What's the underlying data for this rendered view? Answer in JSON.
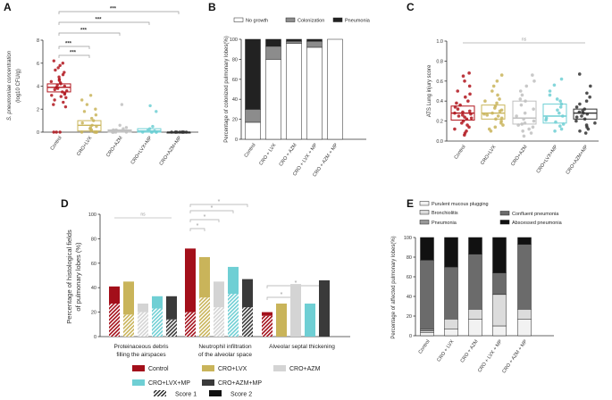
{
  "panels": {
    "A": {
      "letter": "A",
      "ylabel_line1": "S. pneumoniae concentration",
      "ylabel_line2": "(log10 CFU/g)",
      "yticks": [
        "0",
        "2",
        "4",
        "6",
        "8"
      ],
      "sig": [
        "***",
        "***",
        "***",
        "***",
        "***"
      ]
    },
    "B": {
      "letter": "B",
      "ylabel": "Percentage of colonized pulmonary lobes(%)",
      "yticks": [
        "0",
        "20",
        "40",
        "60",
        "80",
        "100"
      ],
      "legend": [
        "No growth",
        "Colonization",
        "Pneumonia"
      ]
    },
    "C": {
      "letter": "C",
      "ylabel": "ATS Lung injury score",
      "yticks": [
        "0.0",
        "0.2",
        "0.4",
        "0.6",
        "0.8",
        "1.0"
      ],
      "sig": "ns"
    },
    "D": {
      "letter": "D",
      "ylabel_line1": "Percentage of histological fields",
      "ylabel_line2": "of pulmonary lobes (%)",
      "yticks": [
        "0",
        "20",
        "40",
        "60",
        "80",
        "100"
      ],
      "cat1_line1": "Proteinaceous debris",
      "cat1_line2": "filling the airspaces",
      "cat2_line1": "Neutrophil infiltration",
      "cat2_line2": "of the alveolar space",
      "cat3": "Alveolar septal thickening",
      "ns": "ns",
      "star": "*",
      "legend_groups": [
        "Control",
        "CRO+LVX",
        "CRO+AZM",
        "CRO+LVX+MP",
        "CRO+AZM+MP"
      ],
      "legend_score1": "Score 1",
      "legend_score2": "Score 2"
    },
    "E": {
      "letter": "E",
      "ylabel": "Percentage of affected pulmonary lobes(%)",
      "yticks": [
        "0",
        "20",
        "40",
        "60",
        "80",
        "100"
      ],
      "legend": [
        "Purulent mucous plugging",
        "Bronchiolitis",
        "Pneumonia",
        "Confluent pneumonia",
        "Abscessed pneumonia"
      ]
    }
  },
  "chart_data": [
    {
      "panel": "A",
      "type": "scatter",
      "title": "",
      "ylabel": "S. pneumoniae concentration (log10 CFU/g)",
      "ylim": [
        0,
        8
      ],
      "categories": [
        "Control",
        "CRO+LVX",
        "CRO+AZM",
        "CRO+LVX+MP",
        "CRO+AZM+MP"
      ],
      "colors": [
        "#b0141c",
        "#c9b45a",
        "#bfbfbf",
        "#6fcfd4",
        "#333333"
      ],
      "box": [
        {
          "q1": 3.5,
          "median": 3.9,
          "q3": 4.2
        },
        {
          "q1": 0.1,
          "median": 0.6,
          "q3": 1.0
        },
        {
          "q1": 0.0,
          "median": 0.1,
          "q3": 0.2
        },
        {
          "q1": 0.0,
          "median": 0.1,
          "q3": 0.3
        },
        {
          "q1": 0.0,
          "median": 0.0,
          "q3": 0.0
        }
      ],
      "points": [
        [
          6.2,
          6.0,
          5.8,
          5.6,
          5.4,
          5.2,
          5.0,
          4.8,
          4.6,
          4.5,
          4.4,
          4.3,
          4.2,
          4.1,
          4.0,
          3.9,
          3.8,
          3.7,
          3.6,
          3.5,
          3.4,
          3.3,
          3.2,
          3.1,
          3.0,
          2.8,
          2.6,
          2.4,
          2.2,
          0.0,
          0.0,
          0.0
        ],
        [
          3.2,
          2.8,
          2.4,
          2.0,
          1.8,
          1.5,
          1.2,
          1.0,
          0.8,
          0.6,
          0.5,
          0.4,
          0.3,
          0.2,
          0.1,
          0.0,
          0.0,
          0.0,
          0.0,
          0.0
        ],
        [
          2.4,
          0.6,
          0.4,
          0.3,
          0.2,
          0.2,
          0.1,
          0.1,
          0.0,
          0.0,
          0.0,
          0.0,
          0.0,
          0.0
        ],
        [
          2.3,
          1.8,
          0.5,
          0.3,
          0.2,
          0.1,
          0.0,
          0.0,
          0.0,
          0.0,
          0.0
        ],
        [
          0.0,
          0.0,
          0.0,
          0.0,
          0.0,
          0.0,
          0.0,
          0.0,
          0.0,
          0.0
        ]
      ],
      "significance": "*** Control vs each treatment group"
    },
    {
      "panel": "B",
      "type": "bar",
      "stacked": true,
      "ylabel": "Percentage of colonized pulmonary lobes(%)",
      "ylim": [
        0,
        100
      ],
      "categories": [
        "Control",
        "CRO + LVX",
        "CRO + AZM",
        "CRO + LVX + MP",
        "CRO + AZM + MP"
      ],
      "series": [
        {
          "name": "No growth",
          "color": "#ffffff",
          "values": [
            17,
            80,
            96,
            92,
            100
          ]
        },
        {
          "name": "Colonization",
          "color": "#8c8c8c",
          "values": [
            13,
            13,
            2,
            6,
            0
          ]
        },
        {
          "name": "Pneumonia",
          "color": "#222222",
          "values": [
            70,
            7,
            2,
            2,
            0
          ]
        }
      ]
    },
    {
      "panel": "C",
      "type": "scatter",
      "ylabel": "ATS Lung injury score",
      "ylim": [
        0,
        1
      ],
      "categories": [
        "Control",
        "CRO+LVX",
        "CRO+AZM",
        "CRO+LVX+MP",
        "CRO+AZM+MP"
      ],
      "colors": [
        "#b0141c",
        "#c9b45a",
        "#bfbfbf",
        "#6fcfd4",
        "#333333"
      ],
      "box": [
        {
          "q1": 0.21,
          "median": 0.28,
          "q3": 0.35
        },
        {
          "q1": 0.22,
          "median": 0.28,
          "q3": 0.36
        },
        {
          "q1": 0.17,
          "median": 0.23,
          "q3": 0.4
        },
        {
          "q1": 0.18,
          "median": 0.25,
          "q3": 0.37
        },
        {
          "q1": 0.22,
          "median": 0.28,
          "q3": 0.32
        }
      ],
      "points": [
        [
          0.68,
          0.65,
          0.6,
          0.55,
          0.5,
          0.47,
          0.44,
          0.4,
          0.38,
          0.36,
          0.34,
          0.32,
          0.3,
          0.29,
          0.28,
          0.27,
          0.26,
          0.25,
          0.24,
          0.23,
          0.22,
          0.2,
          0.18,
          0.16,
          0.14,
          0.12,
          0.1,
          0.08,
          0.06
        ],
        [
          0.66,
          0.6,
          0.55,
          0.5,
          0.46,
          0.42,
          0.4,
          0.38,
          0.35,
          0.33,
          0.31,
          0.3,
          0.28,
          0.27,
          0.26,
          0.25,
          0.23,
          0.22,
          0.2,
          0.18,
          0.16,
          0.14,
          0.12,
          0.1
        ],
        [
          0.66,
          0.6,
          0.55,
          0.5,
          0.46,
          0.42,
          0.4,
          0.36,
          0.32,
          0.28,
          0.25,
          0.22,
          0.2,
          0.18,
          0.17,
          0.16,
          0.14,
          0.12,
          0.1,
          0.08,
          0.05
        ],
        [
          0.62,
          0.56,
          0.5,
          0.46,
          0.42,
          0.4,
          0.37,
          0.34,
          0.31,
          0.28,
          0.25,
          0.23,
          0.21,
          0.19,
          0.17,
          0.15,
          0.12,
          0.1
        ],
        [
          0.67,
          0.55,
          0.48,
          0.44,
          0.4,
          0.37,
          0.34,
          0.32,
          0.3,
          0.29,
          0.28,
          0.27,
          0.25,
          0.24,
          0.22,
          0.2,
          0.18,
          0.16,
          0.14,
          0.12,
          0.1,
          0.08
        ]
      ],
      "significance": "ns"
    },
    {
      "panel": "D",
      "type": "bar",
      "stacked": true,
      "ylabel": "Percentage of histological fields of pulmonary lobes (%)",
      "ylim": [
        0,
        100
      ],
      "groups": [
        "Proteinaceous debris filling the airspaces",
        "Neutrophil infiltration of the alveolar space",
        "Alveolar septal thickening"
      ],
      "series_names": [
        "Control",
        "CRO+LVX",
        "CRO+AZM",
        "CRO+LVX+MP",
        "CRO+AZM+MP"
      ],
      "colors": [
        "#a30f1a",
        "#c9b45a",
        "#d4d4d4",
        "#6fcfd4",
        "#3a3a3a"
      ],
      "score1": [
        [
          27,
          18,
          20,
          23,
          14
        ],
        [
          20,
          32,
          24,
          35,
          24
        ],
        [
          17,
          0,
          0,
          0,
          0
        ]
      ],
      "total": [
        [
          41,
          45,
          27,
          33,
          33
        ],
        [
          72,
          65,
          45,
          57,
          47
        ],
        [
          20,
          27,
          43,
          27,
          46
        ]
      ],
      "significance": [
        "ns",
        "* (4 comparisons)",
        "* (2 comparisons)"
      ]
    },
    {
      "panel": "E",
      "type": "bar",
      "stacked": true,
      "ylabel": "Percentage of affected pulmonary lobes(%)",
      "ylim": [
        0,
        100
      ],
      "categories": [
        "Control",
        "CRO + LVX",
        "CRO + AZM",
        "CRO + LVX + MP",
        "CRO + AZM + MP"
      ],
      "series": [
        {
          "name": "Purulent mucous plugging",
          "color": "#f2f2f2",
          "values": [
            3,
            7,
            17,
            10,
            17
          ]
        },
        {
          "name": "Bronchiolitis",
          "color": "#dcdcdc",
          "values": [
            2,
            10,
            10,
            32,
            10
          ]
        },
        {
          "name": "Pneumonia",
          "color": "#999999",
          "values": [
            2,
            0,
            0,
            0,
            0
          ]
        },
        {
          "name": "Confluent pneumonia",
          "color": "#6b6b6b",
          "values": [
            70,
            53,
            56,
            22,
            66
          ]
        },
        {
          "name": "Abscessed pneumonia",
          "color": "#111111",
          "values": [
            23,
            30,
            17,
            36,
            7
          ]
        }
      ]
    }
  ]
}
